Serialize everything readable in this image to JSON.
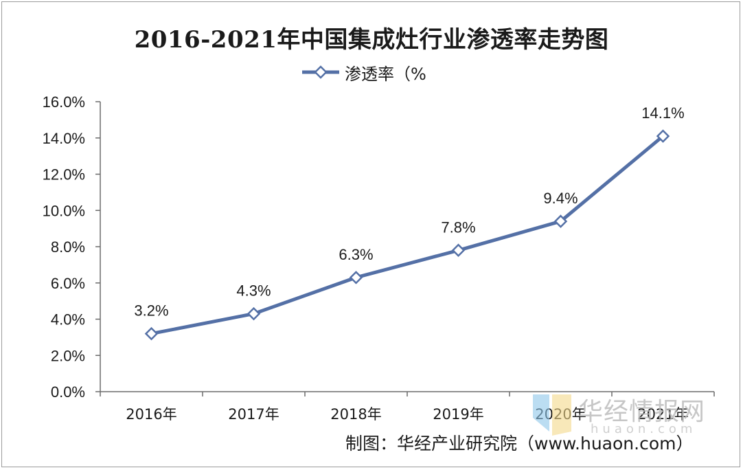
{
  "chart_data": {
    "type": "line",
    "title": "2016-2021年中国集成灶行业渗透率走势图",
    "categories": [
      "2016年",
      "2017年",
      "2018年",
      "2019年",
      "2020年",
      "2021年"
    ],
    "series": [
      {
        "name": "渗透率（%",
        "values": [
          3.2,
          4.3,
          6.3,
          7.8,
          9.4,
          14.1
        ],
        "data_labels": [
          "3.2%",
          "4.3%",
          "6.3%",
          "7.8%",
          "9.4%",
          "14.1%"
        ]
      }
    ],
    "y_ticks": [
      "0.0%",
      "2.0%",
      "4.0%",
      "6.0%",
      "8.0%",
      "10.0%",
      "12.0%",
      "14.0%",
      "16.0%"
    ],
    "ylim": [
      0,
      16
    ],
    "y_step": 2,
    "xlabel": "",
    "ylabel": "",
    "legend_position": "top-center",
    "grid": false
  },
  "colors": {
    "line": "#5470a6",
    "marker_fill": "#ffffff",
    "axis": "#6b6b6b"
  },
  "source": "制图：华经产业研究院（www.huaon.com）",
  "watermark": {
    "text": "华经情报网",
    "sub": "huaon.com"
  }
}
